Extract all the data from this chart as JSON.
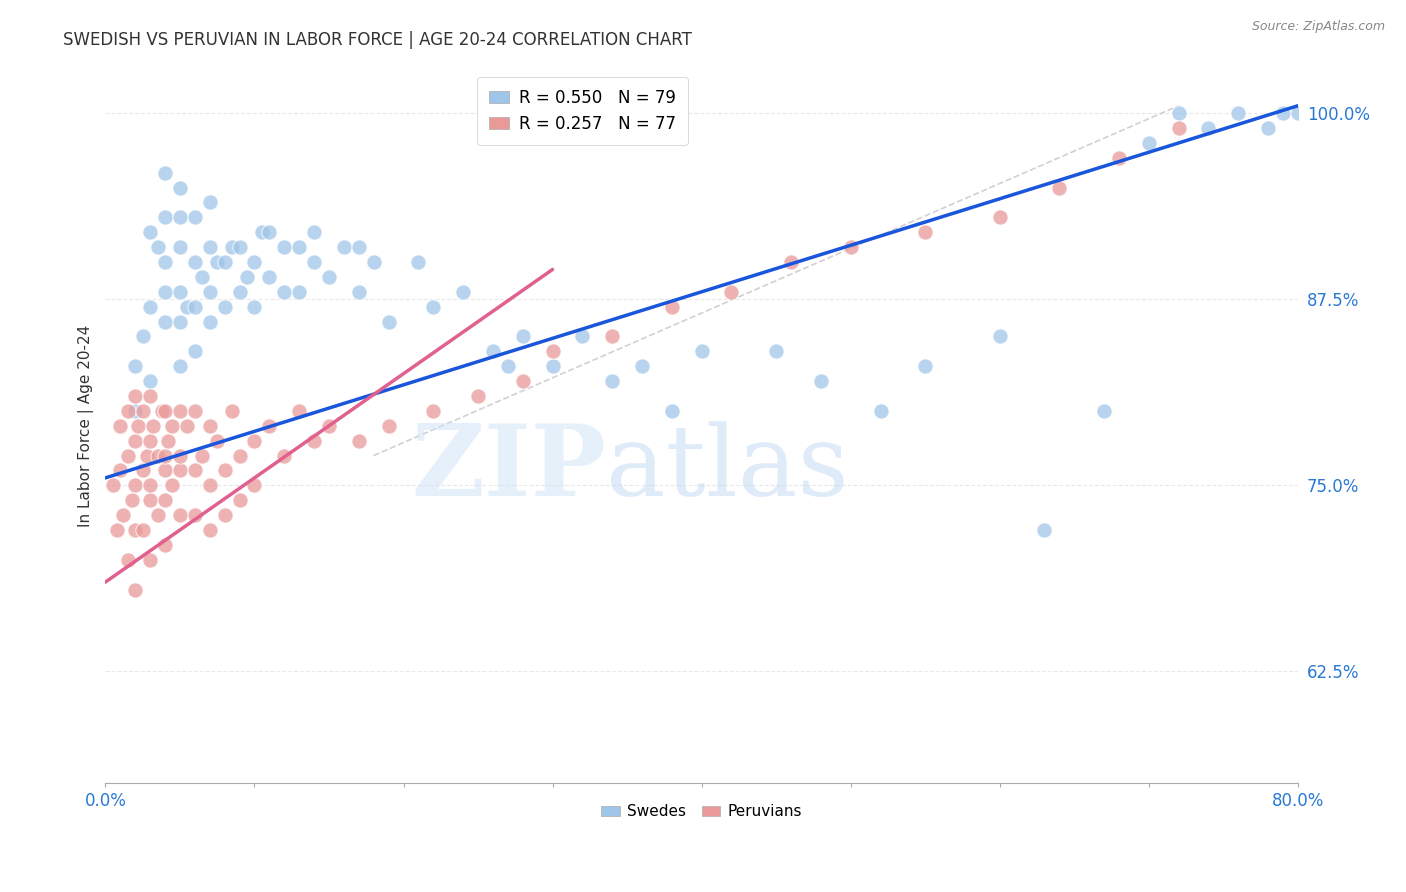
{
  "title": "SWEDISH VS PERUVIAN IN LABOR FORCE | AGE 20-24 CORRELATION CHART",
  "source": "Source: ZipAtlas.com",
  "ylabel": "In Labor Force | Age 20-24",
  "xlim": [
    0.0,
    0.8
  ],
  "ylim": [
    0.55,
    1.03
  ],
  "yticks": [
    0.625,
    0.75,
    0.875,
    1.0
  ],
  "yticklabels": [
    "62.5%",
    "75.0%",
    "87.5%",
    "100.0%"
  ],
  "swedes_R": 0.55,
  "swedes_N": 79,
  "peruvians_R": 0.257,
  "peruvians_N": 77,
  "blue_color": "#9fc5e8",
  "pink_color": "#ea9999",
  "blue_line_color": "#1a56db",
  "pink_line_color": "#e06090",
  "ref_line_color": "#cccccc",
  "grid_color": "#e0e0e0",
  "background_color": "#ffffff",
  "watermark_zip": "ZIP",
  "watermark_atlas": "atlas",
  "blue_line_x0": 0.0,
  "blue_line_y0": 0.755,
  "blue_line_x1": 0.8,
  "blue_line_y1": 1.005,
  "pink_line_x0": 0.0,
  "pink_line_y0": 0.685,
  "pink_line_x1": 0.3,
  "pink_line_y1": 0.895,
  "ref_line_x0": 0.18,
  "ref_line_y0": 0.77,
  "ref_line_x1": 0.72,
  "ref_line_y1": 1.005,
  "swedes_x": [
    0.02,
    0.02,
    0.025,
    0.03,
    0.03,
    0.03,
    0.035,
    0.04,
    0.04,
    0.04,
    0.04,
    0.04,
    0.05,
    0.05,
    0.05,
    0.05,
    0.05,
    0.05,
    0.055,
    0.06,
    0.06,
    0.06,
    0.06,
    0.065,
    0.07,
    0.07,
    0.07,
    0.07,
    0.075,
    0.08,
    0.08,
    0.085,
    0.09,
    0.09,
    0.095,
    0.1,
    0.1,
    0.105,
    0.11,
    0.11,
    0.12,
    0.12,
    0.13,
    0.13,
    0.14,
    0.14,
    0.15,
    0.16,
    0.17,
    0.17,
    0.18,
    0.19,
    0.21,
    0.22,
    0.24,
    0.26,
    0.27,
    0.28,
    0.3,
    0.32,
    0.34,
    0.36,
    0.38,
    0.4,
    0.45,
    0.48,
    0.52,
    0.55,
    0.6,
    0.63,
    0.67,
    0.7,
    0.72,
    0.74,
    0.76,
    0.78,
    0.79,
    0.8,
    0.82
  ],
  "swedes_y": [
    0.8,
    0.83,
    0.85,
    0.82,
    0.87,
    0.92,
    0.91,
    0.86,
    0.88,
    0.9,
    0.93,
    0.96,
    0.83,
    0.86,
    0.88,
    0.91,
    0.93,
    0.95,
    0.87,
    0.84,
    0.87,
    0.9,
    0.93,
    0.89,
    0.86,
    0.88,
    0.91,
    0.94,
    0.9,
    0.87,
    0.9,
    0.91,
    0.88,
    0.91,
    0.89,
    0.87,
    0.9,
    0.92,
    0.89,
    0.92,
    0.88,
    0.91,
    0.88,
    0.91,
    0.9,
    0.92,
    0.89,
    0.91,
    0.88,
    0.91,
    0.9,
    0.86,
    0.9,
    0.87,
    0.88,
    0.84,
    0.83,
    0.85,
    0.83,
    0.85,
    0.82,
    0.83,
    0.8,
    0.84,
    0.84,
    0.82,
    0.8,
    0.83,
    0.85,
    0.72,
    0.8,
    0.98,
    1.0,
    0.99,
    1.0,
    0.99,
    1.0,
    1.0,
    1.0
  ],
  "peruvians_x": [
    0.005,
    0.008,
    0.01,
    0.01,
    0.012,
    0.015,
    0.015,
    0.015,
    0.018,
    0.02,
    0.02,
    0.02,
    0.02,
    0.02,
    0.022,
    0.025,
    0.025,
    0.025,
    0.028,
    0.03,
    0.03,
    0.03,
    0.03,
    0.03,
    0.032,
    0.035,
    0.035,
    0.038,
    0.04,
    0.04,
    0.04,
    0.04,
    0.04,
    0.042,
    0.045,
    0.045,
    0.05,
    0.05,
    0.05,
    0.05,
    0.055,
    0.06,
    0.06,
    0.06,
    0.065,
    0.07,
    0.07,
    0.07,
    0.075,
    0.08,
    0.08,
    0.085,
    0.09,
    0.09,
    0.1,
    0.1,
    0.11,
    0.12,
    0.13,
    0.14,
    0.15,
    0.17,
    0.19,
    0.22,
    0.25,
    0.28,
    0.3,
    0.34,
    0.38,
    0.42,
    0.46,
    0.5,
    0.55,
    0.6,
    0.64,
    0.68,
    0.72
  ],
  "peruvians_y": [
    0.75,
    0.72,
    0.76,
    0.79,
    0.73,
    0.77,
    0.8,
    0.7,
    0.74,
    0.78,
    0.81,
    0.75,
    0.68,
    0.72,
    0.79,
    0.76,
    0.8,
    0.72,
    0.77,
    0.74,
    0.78,
    0.81,
    0.7,
    0.75,
    0.79,
    0.73,
    0.77,
    0.8,
    0.76,
    0.8,
    0.74,
    0.77,
    0.71,
    0.78,
    0.75,
    0.79,
    0.76,
    0.8,
    0.73,
    0.77,
    0.79,
    0.76,
    0.8,
    0.73,
    0.77,
    0.79,
    0.75,
    0.72,
    0.78,
    0.76,
    0.73,
    0.8,
    0.77,
    0.74,
    0.78,
    0.75,
    0.79,
    0.77,
    0.8,
    0.78,
    0.79,
    0.78,
    0.79,
    0.8,
    0.81,
    0.82,
    0.84,
    0.85,
    0.87,
    0.88,
    0.9,
    0.91,
    0.92,
    0.93,
    0.95,
    0.97,
    0.99
  ]
}
